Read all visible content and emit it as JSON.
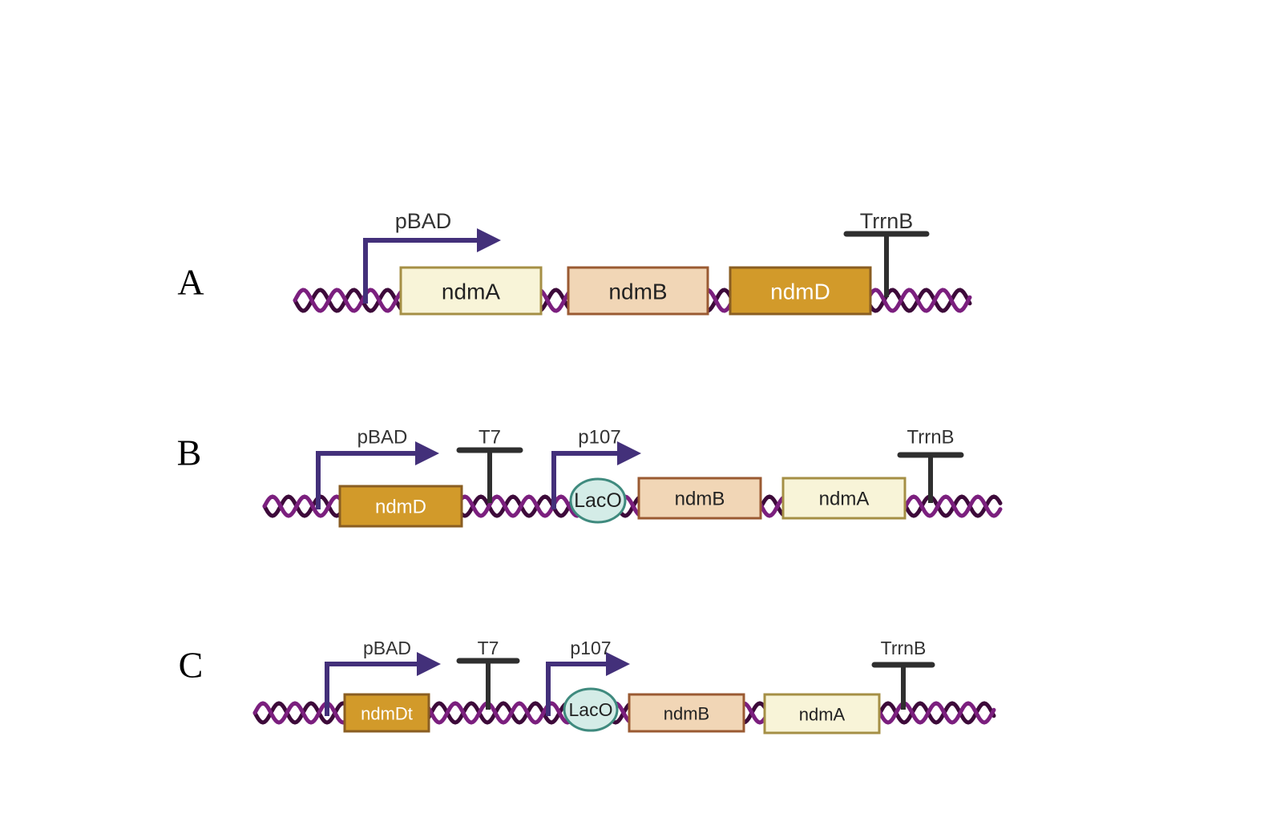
{
  "colors": {
    "dna_strand_dark": "#3d0a3a",
    "dna_strand_light": "#7b1f7e",
    "promoter_arrow": "#43307a",
    "terminator": "#2f2f2f",
    "ndmA_fill": "#f8f4d8",
    "ndmA_stroke": "#a58f45",
    "ndmB_fill": "#f1d6b6",
    "ndmB_stroke": "#9a5a32",
    "ndmD_fill": "#d29a2a",
    "ndmD_stroke": "#8a5e22",
    "laco_fill": "#d4ece7",
    "laco_stroke": "#3f8a7e"
  },
  "panels": [
    {
      "letter": "A",
      "promoters": [
        {
          "label": "pBAD"
        }
      ],
      "terminators": [
        {
          "label": "TrrnB"
        }
      ],
      "operators": [],
      "genes": [
        {
          "label": "ndmA",
          "kind": "ndmA"
        },
        {
          "label": "ndmB",
          "kind": "ndmB"
        },
        {
          "label": "ndmD",
          "kind": "ndmD"
        }
      ]
    },
    {
      "letter": "B",
      "promoters": [
        {
          "label": "pBAD"
        },
        {
          "label": "p107"
        }
      ],
      "terminators": [
        {
          "label": "T7"
        },
        {
          "label": "TrrnB"
        }
      ],
      "operators": [
        {
          "label": "LacO"
        }
      ],
      "genes": [
        {
          "label": "ndmD",
          "kind": "ndmD"
        },
        {
          "label": "ndmB",
          "kind": "ndmB"
        },
        {
          "label": "ndmA",
          "kind": "ndmA"
        }
      ]
    },
    {
      "letter": "C",
      "promoters": [
        {
          "label": "pBAD"
        },
        {
          "label": "p107"
        }
      ],
      "terminators": [
        {
          "label": "T7"
        },
        {
          "label": "TrrnB"
        }
      ],
      "operators": [
        {
          "label": "LacO"
        }
      ],
      "genes": [
        {
          "label": "ndmDt",
          "kind": "ndmD"
        },
        {
          "label": "ndmB",
          "kind": "ndmB"
        },
        {
          "label": "ndmA",
          "kind": "ndmA"
        }
      ]
    }
  ]
}
